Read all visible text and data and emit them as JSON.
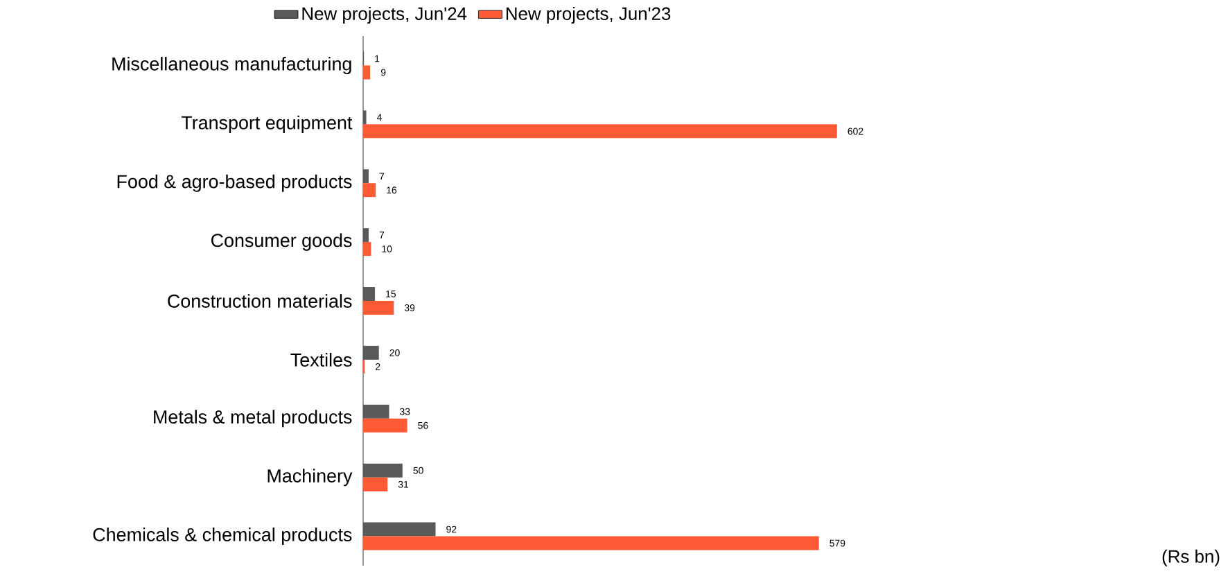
{
  "chart_data": {
    "type": "bar",
    "orientation": "horizontal",
    "data_labels": true,
    "legend": "top",
    "categories": [
      "Miscellaneous manufacturing",
      "Transport equipment",
      "Food & agro-based products",
      "Consumer goods",
      "Construction materials",
      "Textiles",
      "Metals & metal products",
      "Machinery",
      "Chemicals & chemical products"
    ],
    "series": [
      {
        "name": "New projects, Jun'24",
        "color": "#595959",
        "values": [
          1,
          4,
          7,
          7,
          15,
          20,
          33,
          50,
          92
        ]
      },
      {
        "name": "New projects, Jun'23",
        "color": "#ff5a36",
        "values": [
          9,
          602,
          16,
          10,
          39,
          2,
          56,
          31,
          579
        ]
      }
    ],
    "annotations": [
      "(Rs bn)"
    ]
  }
}
